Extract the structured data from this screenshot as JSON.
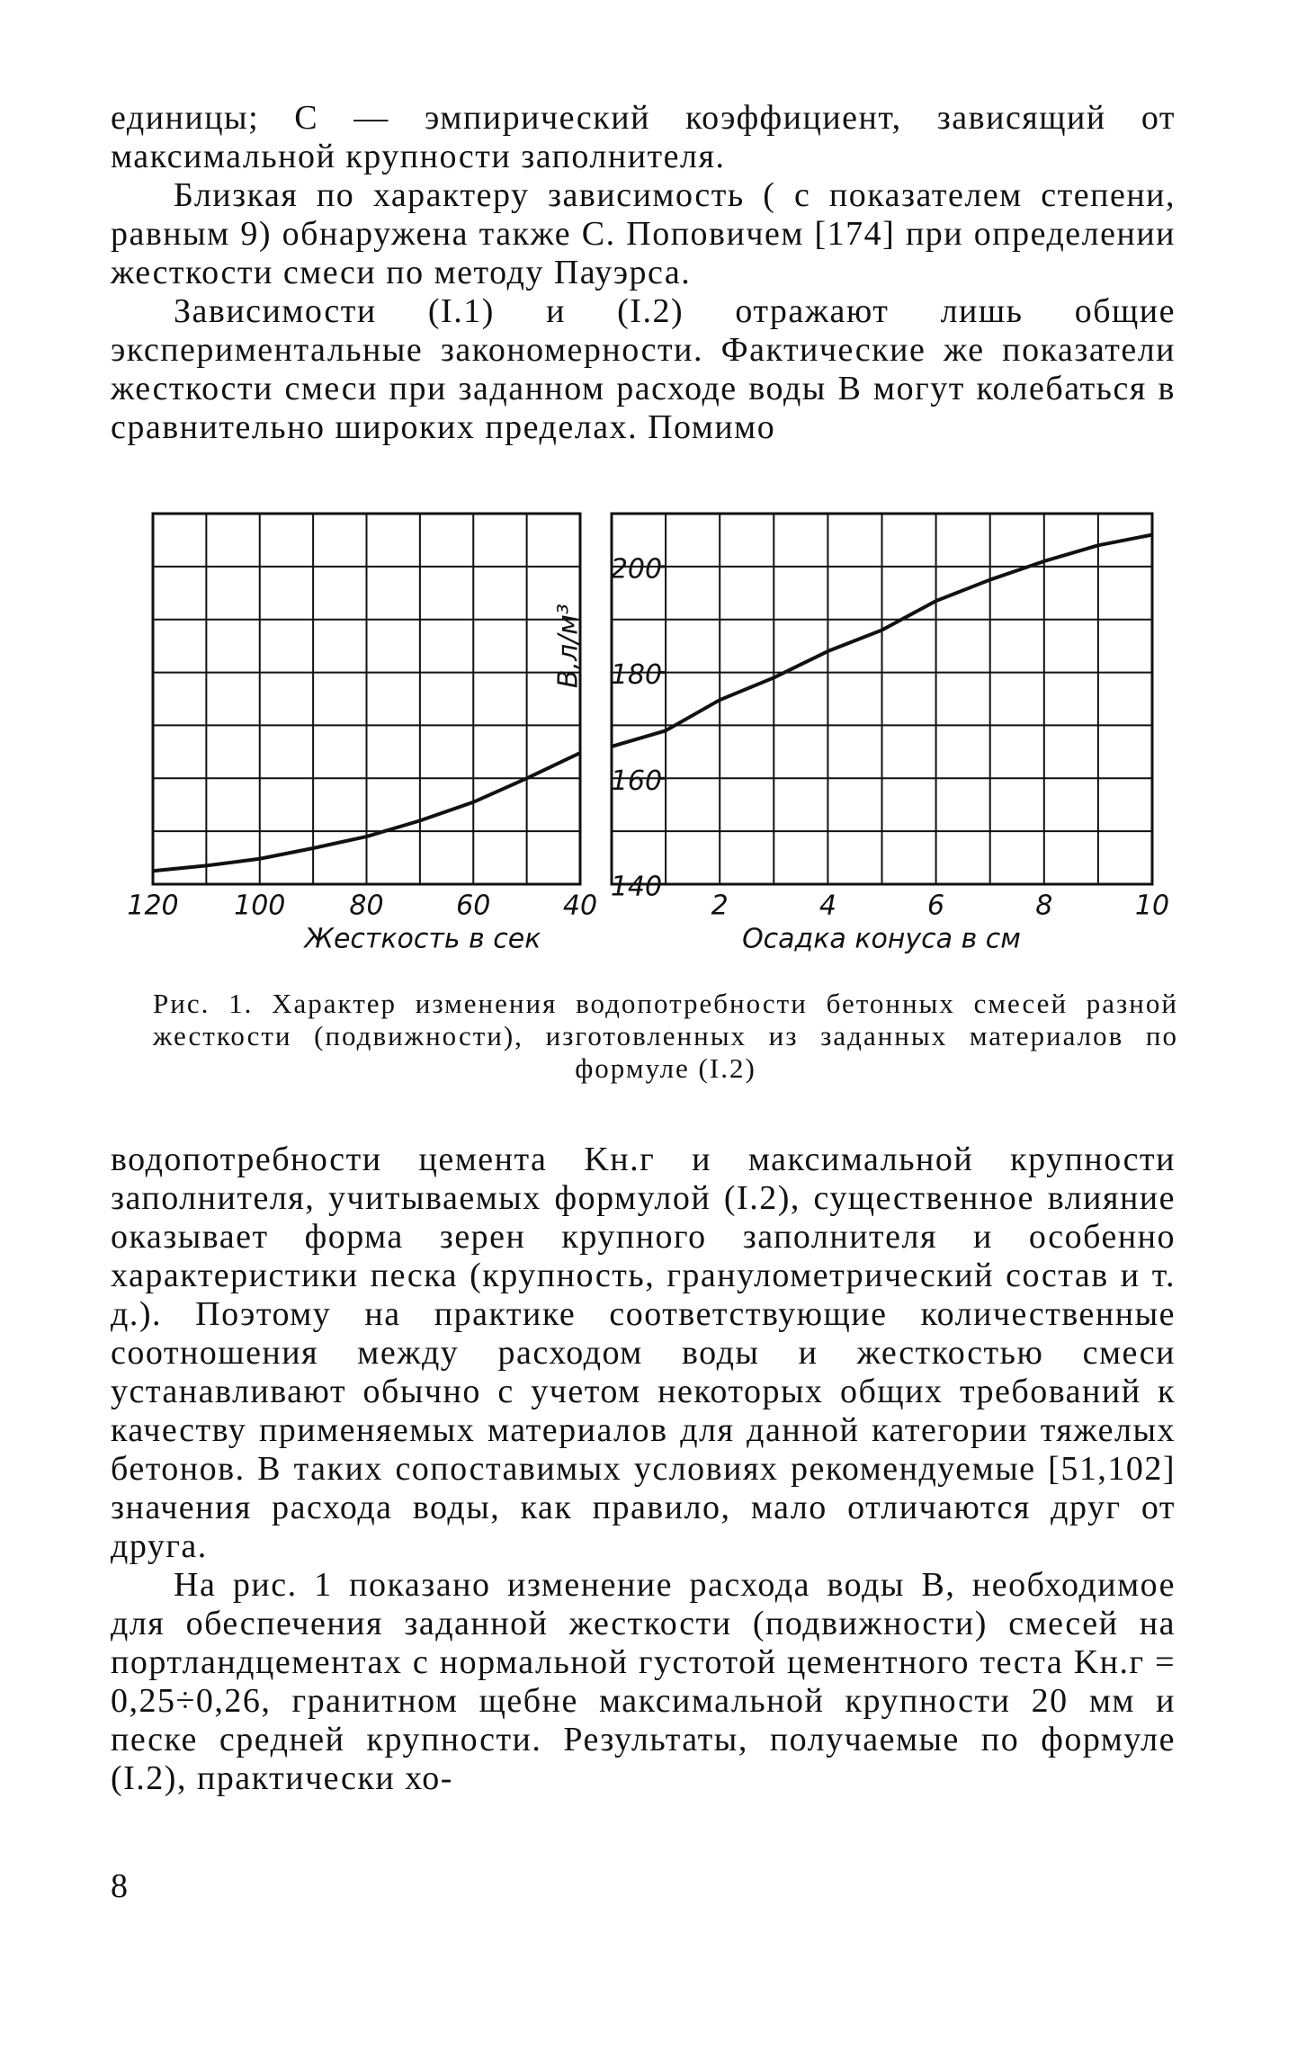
{
  "paragraphs_top": [
    "единицы; С — эмпирический коэффициент, зависящий от максимальной крупности заполнителя.",
    "Близкая по характеру зависимость ( с показателем степени, равным 9) обнаружена также С. Поповичем [174] при определении жесткости смеси по методу Пауэрса.",
    "Зависимости (I.1) и (I.2) отражают лишь общие экспериментальные закономерности. Фактические же показатели жесткости смеси при заданном расходе воды В могут колебаться в сравнительно широких пределах. Помимо"
  ],
  "chart_data": [
    {
      "type": "line",
      "x_label": "Жесткость в сек",
      "x": [
        120,
        110,
        100,
        90,
        80,
        70,
        60,
        50,
        40
      ],
      "values": [
        142.5,
        143.5,
        144.8,
        146.8,
        149,
        152,
        155.5,
        160,
        164.8
      ],
      "color": "#111111",
      "xlim": [
        120,
        40
      ],
      "xticks": [
        120,
        100,
        80,
        60,
        40
      ],
      "xgrid": [
        120,
        110,
        100,
        90,
        80,
        70,
        60,
        50,
        40
      ],
      "ylim": [
        140,
        210
      ],
      "ygrid": [
        140,
        150,
        160,
        170,
        180,
        190,
        200,
        210
      ]
    },
    {
      "type": "line",
      "x_label": "Осадка конуса в см",
      "y_label": "В,л/м³",
      "x": [
        0,
        1,
        2,
        3,
        4,
        5,
        6,
        7,
        8,
        9,
        10
      ],
      "values": [
        166,
        169,
        174.8,
        179,
        184,
        188,
        193.5,
        197.5,
        201,
        204,
        206
      ],
      "color": "#111111",
      "xlim": [
        0,
        10
      ],
      "xticks": [
        2,
        4,
        6,
        8,
        10
      ],
      "xgrid": [
        0,
        1,
        2,
        3,
        4,
        5,
        6,
        7,
        8,
        9,
        10
      ],
      "ylim": [
        140,
        210
      ],
      "yticks": [
        140,
        160,
        180,
        200
      ],
      "ygrid": [
        140,
        150,
        160,
        170,
        180,
        190,
        200,
        210
      ]
    }
  ],
  "caption": "Рис. 1. Характер изменения водопотребности бетонных смесей разной жесткости (подвижности), изготовленных из заданных материалов по формуле (I.2)",
  "paragraphs_bottom": [
    "водопотребности цемента Kн.г и максимальной крупности заполнителя, учитываемых формулой (I.2), существенное влияние оказывает форма зерен крупного заполнителя и особенно характеристики песка (крупность, гранулометрический состав и т. д.). Поэтому на практике соответствующие количественные соотношения между расходом воды и жесткостью смеси устанавливают обычно с учетом некоторых общих требований к качеству применяемых материалов для данной категории тяжелых бетонов. В таких сопоставимых условиях рекомендуемые [51,102] значения расхода воды, как правило, мало отличаются друг от друга.",
    "На рис. 1 показано изменение расхода воды В, необходимое для обеспечения заданной жесткости (подвижности) смесей на портландцементах с нормальной густотой цементного теста Kн.г = 0,25÷0,26, гранитном щебне максимальной крупности 20 мм и песке средней крупности. Результаты, получаемые по формуле (I.2), практически хо-"
  ],
  "page_number": "8"
}
